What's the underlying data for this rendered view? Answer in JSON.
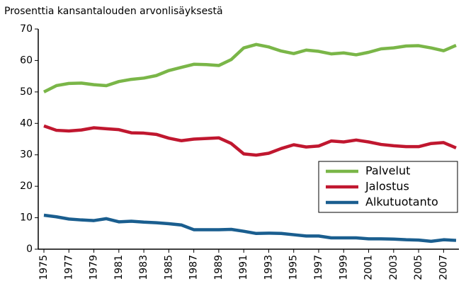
{
  "chart_data": {
    "type": "line",
    "title": "Prosenttia kansantalouden arvonlisäyksestä",
    "x": [
      1975,
      1976,
      1977,
      1978,
      1979,
      1980,
      1981,
      1982,
      1983,
      1984,
      1985,
      1986,
      1987,
      1988,
      1989,
      1990,
      1991,
      1992,
      1993,
      1994,
      1995,
      1996,
      1997,
      1998,
      1999,
      2000,
      2001,
      2002,
      2003,
      2004,
      2005,
      2006,
      2007,
      2008
    ],
    "series": [
      {
        "name": "Palvelut",
        "color": "#7ab648",
        "values": [
          50,
          52,
          52.7,
          52.8,
          52.3,
          52,
          53.3,
          54,
          54.4,
          55.2,
          56.8,
          57.8,
          58.8,
          58.7,
          58.4,
          60.3,
          64,
          65.1,
          64.3,
          63,
          62.2,
          63.3,
          62.9,
          62.1,
          62.4,
          61.8,
          62.6,
          63.7,
          64,
          64.6,
          64.7,
          64,
          63.1,
          64.8
        ]
      },
      {
        "name": "Jalostus",
        "color": "#c0172f",
        "values": [
          39.2,
          37.8,
          37.6,
          37.9,
          38.6,
          38.3,
          38,
          37,
          36.9,
          36.5,
          35.3,
          34.5,
          35,
          35.2,
          35.4,
          33.6,
          30.3,
          29.9,
          30.5,
          32,
          33.2,
          32.5,
          32.8,
          34.4,
          34.1,
          34.7,
          34.1,
          33.3,
          32.9,
          32.6,
          32.6,
          33.6,
          33.9,
          32.2
        ]
      },
      {
        "name": "Alkutuotanto",
        "color": "#1a5e8f",
        "values": [
          10.8,
          10.3,
          9.6,
          9.3,
          9.1,
          9.7,
          8.7,
          8.9,
          8.6,
          8.4,
          8.1,
          7.7,
          6.2,
          6.2,
          6.2,
          6.3,
          5.7,
          5,
          5.1,
          5,
          4.6,
          4.2,
          4.2,
          3.6,
          3.6,
          3.6,
          3.3,
          3.3,
          3.2,
          3.0,
          2.9,
          2.5,
          3.0,
          2.8
        ]
      }
    ],
    "xlim": [
      1975,
      2008
    ],
    "xticks": [
      1975,
      1977,
      1979,
      1981,
      1983,
      1985,
      1987,
      1989,
      1991,
      1993,
      1995,
      1997,
      1999,
      2001,
      2003,
      2005,
      2007
    ],
    "ylim": [
      0,
      70
    ],
    "yticks": [
      0,
      10,
      20,
      30,
      40,
      50,
      60,
      70
    ],
    "grid": false,
    "legend": "lower right"
  }
}
